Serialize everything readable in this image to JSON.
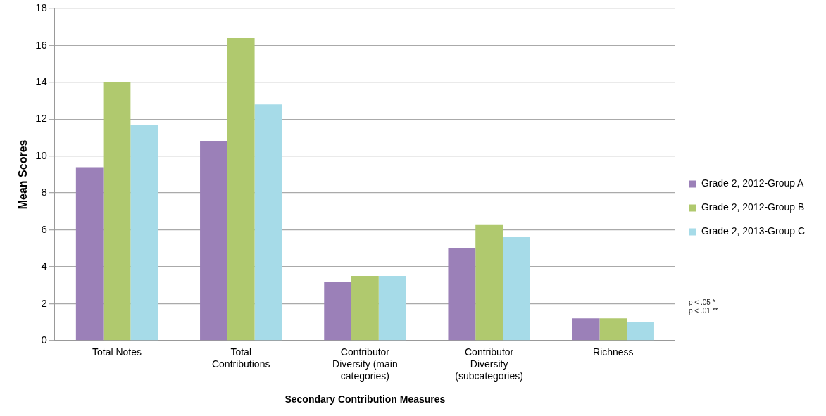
{
  "chart_data": {
    "type": "bar",
    "xlabel": "Secondary Contribution Measures",
    "ylabel": "Mean Scores",
    "categories": [
      "Total Notes",
      "Total Contributions",
      "Contributor Diversity (main categories)",
      "Contributor Diversity (subcategories)",
      "Richness"
    ],
    "series": [
      {
        "name": "Grade 2, 2012-Group A",
        "color": "#9b80b8",
        "values": [
          9.4,
          10.8,
          3.2,
          5.0,
          1.2
        ]
      },
      {
        "name": "Grade 2, 2012-Group B",
        "color": "#b0c96e",
        "values": [
          14,
          16.4,
          3.5,
          6.3,
          1.2
        ]
      },
      {
        "name": "Grade 2, 2013-Group C",
        "color": "#a6dbe8",
        "values": [
          11.7,
          12.8,
          3.5,
          5.6,
          1.0
        ]
      }
    ],
    "ylim": [
      0,
      18
    ],
    "yticks": [
      0,
      2,
      4,
      6,
      8,
      10,
      12,
      14,
      16,
      18
    ],
    "grid": "y",
    "legend": "right",
    "annotations": [
      "p < .05 *",
      "p < .01 **"
    ]
  }
}
